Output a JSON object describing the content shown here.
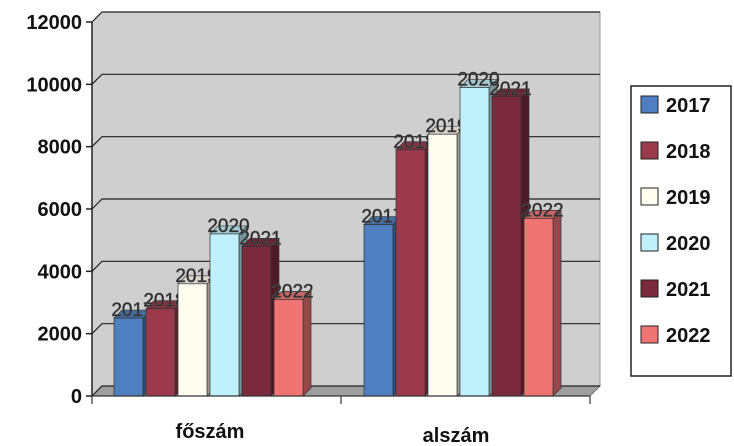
{
  "chart_data": {
    "type": "bar",
    "categories": [
      "főszám",
      "alszám"
    ],
    "series": [
      {
        "name": "2017",
        "values": [
          2500,
          5500
        ],
        "color": "#4f7fc0"
      },
      {
        "name": "2018",
        "values": [
          2800,
          7900
        ],
        "color": "#9a3a4c"
      },
      {
        "name": "2019",
        "values": [
          3600,
          8400
        ],
        "color": "#fffdf0"
      },
      {
        "name": "2020",
        "values": [
          5200,
          9900
        ],
        "color": "#bff0fc"
      },
      {
        "name": "2021",
        "values": [
          4800,
          9600
        ],
        "color": "#7b2a3e"
      },
      {
        "name": "2022",
        "values": [
          3100,
          5700
        ],
        "color": "#f07474"
      }
    ],
    "ylim": [
      0,
      12000
    ],
    "yticks": [
      "0",
      "2000",
      "4000",
      "6000",
      "8000",
      "10000",
      "12000"
    ],
    "grid": true,
    "legend_position": "right",
    "style": "3d-clustered-column"
  }
}
